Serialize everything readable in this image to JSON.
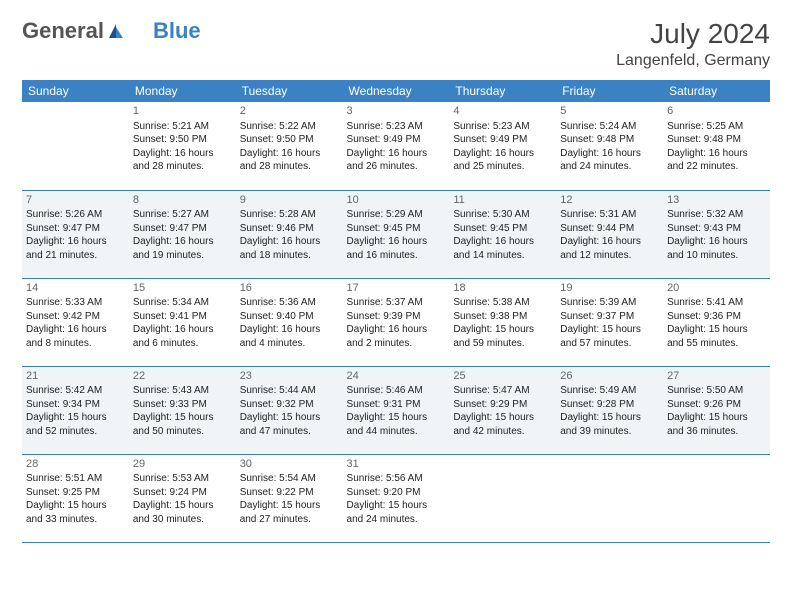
{
  "brand": {
    "general": "General",
    "blue": "Blue"
  },
  "title": "July 2024",
  "location": "Langenfeld, Germany",
  "colors": {
    "accent": "#3b82c4",
    "header_text": "#ffffff",
    "light_row_bg": "#f0f4f7",
    "text": "#222222",
    "title_color": "#444444"
  },
  "days_of_week": [
    "Sunday",
    "Monday",
    "Tuesday",
    "Wednesday",
    "Thursday",
    "Friday",
    "Saturday"
  ],
  "weeks": [
    {
      "light": false,
      "days": [
        null,
        {
          "n": "1",
          "sunrise": "Sunrise: 5:21 AM",
          "sunset": "Sunset: 9:50 PM",
          "day1": "Daylight: 16 hours",
          "day2": "and 28 minutes."
        },
        {
          "n": "2",
          "sunrise": "Sunrise: 5:22 AM",
          "sunset": "Sunset: 9:50 PM",
          "day1": "Daylight: 16 hours",
          "day2": "and 28 minutes."
        },
        {
          "n": "3",
          "sunrise": "Sunrise: 5:23 AM",
          "sunset": "Sunset: 9:49 PM",
          "day1": "Daylight: 16 hours",
          "day2": "and 26 minutes."
        },
        {
          "n": "4",
          "sunrise": "Sunrise: 5:23 AM",
          "sunset": "Sunset: 9:49 PM",
          "day1": "Daylight: 16 hours",
          "day2": "and 25 minutes."
        },
        {
          "n": "5",
          "sunrise": "Sunrise: 5:24 AM",
          "sunset": "Sunset: 9:48 PM",
          "day1": "Daylight: 16 hours",
          "day2": "and 24 minutes."
        },
        {
          "n": "6",
          "sunrise": "Sunrise: 5:25 AM",
          "sunset": "Sunset: 9:48 PM",
          "day1": "Daylight: 16 hours",
          "day2": "and 22 minutes."
        }
      ]
    },
    {
      "light": true,
      "days": [
        {
          "n": "7",
          "sunrise": "Sunrise: 5:26 AM",
          "sunset": "Sunset: 9:47 PM",
          "day1": "Daylight: 16 hours",
          "day2": "and 21 minutes."
        },
        {
          "n": "8",
          "sunrise": "Sunrise: 5:27 AM",
          "sunset": "Sunset: 9:47 PM",
          "day1": "Daylight: 16 hours",
          "day2": "and 19 minutes."
        },
        {
          "n": "9",
          "sunrise": "Sunrise: 5:28 AM",
          "sunset": "Sunset: 9:46 PM",
          "day1": "Daylight: 16 hours",
          "day2": "and 18 minutes."
        },
        {
          "n": "10",
          "sunrise": "Sunrise: 5:29 AM",
          "sunset": "Sunset: 9:45 PM",
          "day1": "Daylight: 16 hours",
          "day2": "and 16 minutes."
        },
        {
          "n": "11",
          "sunrise": "Sunrise: 5:30 AM",
          "sunset": "Sunset: 9:45 PM",
          "day1": "Daylight: 16 hours",
          "day2": "and 14 minutes."
        },
        {
          "n": "12",
          "sunrise": "Sunrise: 5:31 AM",
          "sunset": "Sunset: 9:44 PM",
          "day1": "Daylight: 16 hours",
          "day2": "and 12 minutes."
        },
        {
          "n": "13",
          "sunrise": "Sunrise: 5:32 AM",
          "sunset": "Sunset: 9:43 PM",
          "day1": "Daylight: 16 hours",
          "day2": "and 10 minutes."
        }
      ]
    },
    {
      "light": false,
      "days": [
        {
          "n": "14",
          "sunrise": "Sunrise: 5:33 AM",
          "sunset": "Sunset: 9:42 PM",
          "day1": "Daylight: 16 hours",
          "day2": "and 8 minutes."
        },
        {
          "n": "15",
          "sunrise": "Sunrise: 5:34 AM",
          "sunset": "Sunset: 9:41 PM",
          "day1": "Daylight: 16 hours",
          "day2": "and 6 minutes."
        },
        {
          "n": "16",
          "sunrise": "Sunrise: 5:36 AM",
          "sunset": "Sunset: 9:40 PM",
          "day1": "Daylight: 16 hours",
          "day2": "and 4 minutes."
        },
        {
          "n": "17",
          "sunrise": "Sunrise: 5:37 AM",
          "sunset": "Sunset: 9:39 PM",
          "day1": "Daylight: 16 hours",
          "day2": "and 2 minutes."
        },
        {
          "n": "18",
          "sunrise": "Sunrise: 5:38 AM",
          "sunset": "Sunset: 9:38 PM",
          "day1": "Daylight: 15 hours",
          "day2": "and 59 minutes."
        },
        {
          "n": "19",
          "sunrise": "Sunrise: 5:39 AM",
          "sunset": "Sunset: 9:37 PM",
          "day1": "Daylight: 15 hours",
          "day2": "and 57 minutes."
        },
        {
          "n": "20",
          "sunrise": "Sunrise: 5:41 AM",
          "sunset": "Sunset: 9:36 PM",
          "day1": "Daylight: 15 hours",
          "day2": "and 55 minutes."
        }
      ]
    },
    {
      "light": true,
      "days": [
        {
          "n": "21",
          "sunrise": "Sunrise: 5:42 AM",
          "sunset": "Sunset: 9:34 PM",
          "day1": "Daylight: 15 hours",
          "day2": "and 52 minutes."
        },
        {
          "n": "22",
          "sunrise": "Sunrise: 5:43 AM",
          "sunset": "Sunset: 9:33 PM",
          "day1": "Daylight: 15 hours",
          "day2": "and 50 minutes."
        },
        {
          "n": "23",
          "sunrise": "Sunrise: 5:44 AM",
          "sunset": "Sunset: 9:32 PM",
          "day1": "Daylight: 15 hours",
          "day2": "and 47 minutes."
        },
        {
          "n": "24",
          "sunrise": "Sunrise: 5:46 AM",
          "sunset": "Sunset: 9:31 PM",
          "day1": "Daylight: 15 hours",
          "day2": "and 44 minutes."
        },
        {
          "n": "25",
          "sunrise": "Sunrise: 5:47 AM",
          "sunset": "Sunset: 9:29 PM",
          "day1": "Daylight: 15 hours",
          "day2": "and 42 minutes."
        },
        {
          "n": "26",
          "sunrise": "Sunrise: 5:49 AM",
          "sunset": "Sunset: 9:28 PM",
          "day1": "Daylight: 15 hours",
          "day2": "and 39 minutes."
        },
        {
          "n": "27",
          "sunrise": "Sunrise: 5:50 AM",
          "sunset": "Sunset: 9:26 PM",
          "day1": "Daylight: 15 hours",
          "day2": "and 36 minutes."
        }
      ]
    },
    {
      "light": false,
      "days": [
        {
          "n": "28",
          "sunrise": "Sunrise: 5:51 AM",
          "sunset": "Sunset: 9:25 PM",
          "day1": "Daylight: 15 hours",
          "day2": "and 33 minutes."
        },
        {
          "n": "29",
          "sunrise": "Sunrise: 5:53 AM",
          "sunset": "Sunset: 9:24 PM",
          "day1": "Daylight: 15 hours",
          "day2": "and 30 minutes."
        },
        {
          "n": "30",
          "sunrise": "Sunrise: 5:54 AM",
          "sunset": "Sunset: 9:22 PM",
          "day1": "Daylight: 15 hours",
          "day2": "and 27 minutes."
        },
        {
          "n": "31",
          "sunrise": "Sunrise: 5:56 AM",
          "sunset": "Sunset: 9:20 PM",
          "day1": "Daylight: 15 hours",
          "day2": "and 24 minutes."
        },
        null,
        null,
        null
      ]
    }
  ]
}
